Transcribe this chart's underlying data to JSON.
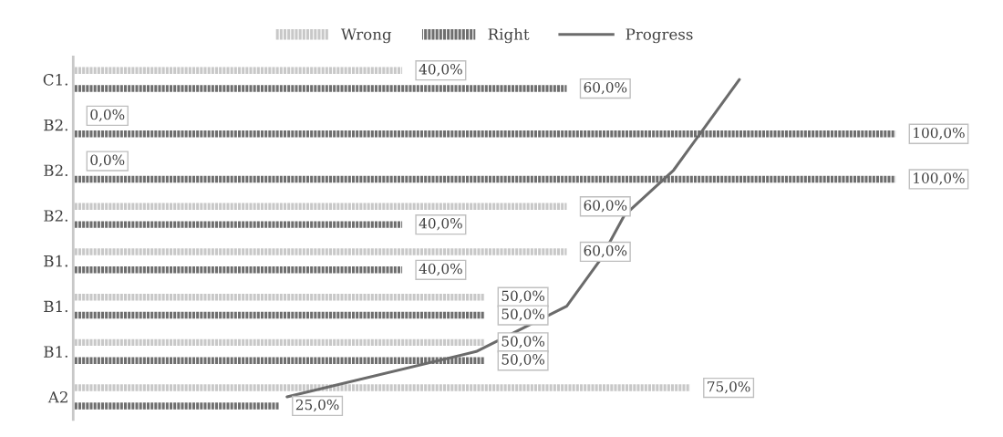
{
  "chart_data": {
    "type": "bar",
    "orientation": "horizontal",
    "categories": [
      "C1.",
      "B2.",
      "B2.",
      "B2.",
      "B1.",
      "B1.",
      "B1.",
      "A2"
    ],
    "xlim": [
      0,
      100
    ],
    "tick_labels": "y",
    "grid": false,
    "legend": "top",
    "series": [
      {
        "name": "Wrong",
        "color": "#c8c8c8",
        "values": [
          40,
          0,
          0,
          60,
          60,
          50,
          50,
          75
        ],
        "value_labels": [
          "40,0%",
          "0,0%",
          "0,0%",
          "60,0%",
          "60,0%",
          "50,0%",
          "50,0%",
          "75,0%"
        ]
      },
      {
        "name": "Right",
        "color": "#6e6e6e",
        "values": [
          60,
          100,
          100,
          40,
          40,
          50,
          50,
          25
        ],
        "value_labels": [
          "60,0%",
          "100,0%",
          "100,0%",
          "40,0%",
          "40,0%",
          "50,0%",
          "50,0%",
          "25,0%"
        ]
      },
      {
        "name": "Progress",
        "type": "line",
        "color": "#6b6b6b",
        "values": [
          81,
          77,
          73,
          67,
          64,
          60,
          49,
          26
        ]
      }
    ]
  }
}
